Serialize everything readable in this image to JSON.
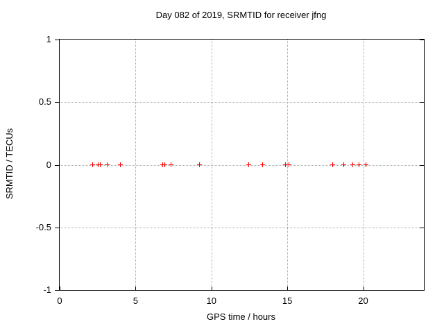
{
  "colors": {
    "background": "#ffffff",
    "axis": "#000000",
    "grid": "#a8a8a8",
    "marker": "#ff0000",
    "text": "#000000"
  },
  "chart_data": {
    "type": "scatter",
    "title": "Day 082 of 2019, SRMTID for receiver jfng",
    "xlabel": "GPS time / hours",
    "ylabel": "SRMTID / TECUs",
    "xlim": [
      0,
      24
    ],
    "ylim": [
      -1,
      1
    ],
    "xticks": [
      0,
      5,
      10,
      15,
      20
    ],
    "yticks": [
      1,
      0.5,
      0,
      -0.5,
      -1
    ],
    "xtick_labels": [
      "0",
      "5",
      "10",
      "15",
      "20"
    ],
    "ytick_labels": [
      "1",
      "0.5",
      "0",
      "-0.5",
      "-1"
    ],
    "grid": true,
    "legend": "none",
    "marker": "plus",
    "series": [
      {
        "name": "SRMTID",
        "x": [
          2.21,
          2.56,
          2.7,
          3.15,
          4.02,
          6.81,
          6.95,
          7.36,
          9.23,
          12.48,
          13.41,
          14.9,
          15.11,
          18.01,
          18.74,
          19.33,
          19.75,
          20.21
        ],
        "y": [
          0,
          0,
          0,
          0,
          0,
          0,
          0,
          0,
          0,
          0,
          0,
          0,
          0,
          0,
          0,
          0,
          0,
          0
        ]
      }
    ]
  }
}
